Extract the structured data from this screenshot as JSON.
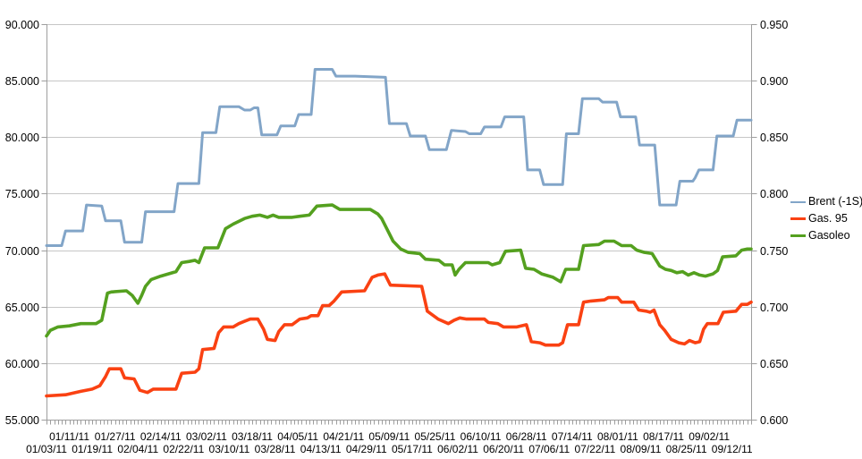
{
  "chart_data": {
    "type": "line",
    "title": "",
    "grid": true,
    "legend_position": "right",
    "y_axis_left": {
      "min": 55,
      "max": 90,
      "step": 5,
      "tick_values": [
        90,
        85,
        80,
        75,
        70,
        65,
        60,
        55
      ],
      "tick_labels": [
        "90.000",
        "85.000",
        "80.000",
        "75.000",
        "70.000",
        "65.000",
        "60.000",
        "55.000"
      ]
    },
    "y_axis_right": {
      "min": 0.6,
      "max": 0.95,
      "step": 0.05,
      "tick_values": [
        0.95,
        0.9,
        0.85,
        0.8,
        0.75,
        0.7,
        0.65,
        0.6
      ],
      "tick_labels": [
        "0.950",
        "0.900",
        "0.850",
        "0.800",
        "0.750",
        "0.700",
        "0.650",
        "0.600"
      ]
    },
    "x_axis": {
      "unit": "business-day index from 01/03/11",
      "day_span": [
        0,
        185
      ],
      "labels_row_upper": [
        "01/11/11",
        "01/27/11",
        "02/14/11",
        "03/02/11",
        "03/18/11",
        "04/05/11",
        "04/21/11",
        "05/09/11",
        "05/25/11",
        "06/10/11",
        "06/28/11",
        "07/14/11",
        "08/01/11",
        "08/17/11",
        "09/02/11"
      ],
      "label_days_upper": [
        6,
        18,
        30,
        42,
        54,
        66,
        78,
        90,
        102,
        114,
        126,
        138,
        150,
        162,
        174
      ],
      "labels_row_lower": [
        "01/03/11",
        "01/19/11",
        "02/04/11",
        "02/22/11",
        "03/10/11",
        "03/28/11",
        "04/13/11",
        "04/29/11",
        "05/17/11",
        "06/02/11",
        "06/20/11",
        "07/06/11",
        "07/22/11",
        "08/09/11",
        "08/25/11",
        "09/12/11"
      ],
      "label_days_lower": [
        0,
        12,
        24,
        36,
        48,
        60,
        72,
        84,
        96,
        108,
        120,
        132,
        144,
        156,
        168,
        180
      ]
    },
    "colors": {
      "brent": "#82A5C8",
      "gas95": "#FA4112",
      "gasoleo": "#54A01F",
      "gridline": "#C6C6C6",
      "axis": "#9E9E9E",
      "text": "#000000"
    },
    "series": [
      {
        "id": "brent",
        "name": "Brent (-1S)",
        "color": "#82A5C8",
        "axis": "left",
        "stroke_width": 3,
        "points": [
          [
            0,
            70.4
          ],
          [
            4,
            70.4
          ],
          [
            5,
            71.7
          ],
          [
            9.5,
            71.7
          ],
          [
            10.5,
            74.0
          ],
          [
            14.5,
            73.9
          ],
          [
            15.5,
            72.6
          ],
          [
            19.5,
            72.6
          ],
          [
            20.5,
            70.7
          ],
          [
            25,
            70.7
          ],
          [
            26,
            73.4
          ],
          [
            33.5,
            73.4
          ],
          [
            34.5,
            75.9
          ],
          [
            40,
            75.9
          ],
          [
            41,
            80.4
          ],
          [
            44.5,
            80.4
          ],
          [
            45.5,
            82.7
          ],
          [
            50.5,
            82.7
          ],
          [
            52,
            82.4
          ],
          [
            53.5,
            82.4
          ],
          [
            54.5,
            82.6
          ],
          [
            55.5,
            82.6
          ],
          [
            56.5,
            80.2
          ],
          [
            60.5,
            80.2
          ],
          [
            61.5,
            81.0
          ],
          [
            65.2,
            81.0
          ],
          [
            66.2,
            82.0
          ],
          [
            69.5,
            82.0
          ],
          [
            70.5,
            86.0
          ],
          [
            75,
            86.0
          ],
          [
            76,
            85.4
          ],
          [
            81,
            85.4
          ],
          [
            89,
            85.3
          ],
          [
            90,
            81.2
          ],
          [
            94.5,
            81.2
          ],
          [
            95.5,
            80.1
          ],
          [
            99.5,
            80.1
          ],
          [
            100.5,
            78.9
          ],
          [
            105,
            78.9
          ],
          [
            106.3,
            80.6
          ],
          [
            110,
            80.5
          ],
          [
            111,
            80.3
          ],
          [
            114,
            80.3
          ],
          [
            115,
            80.9
          ],
          [
            119.3,
            80.9
          ],
          [
            120.3,
            81.8
          ],
          [
            125.3,
            81.8
          ],
          [
            126.3,
            77.1
          ],
          [
            129.5,
            77.1
          ],
          [
            130.5,
            75.8
          ],
          [
            135.5,
            75.8
          ],
          [
            136.5,
            80.3
          ],
          [
            139.7,
            80.3
          ],
          [
            140.7,
            83.4
          ],
          [
            145,
            83.4
          ],
          [
            146,
            83.1
          ],
          [
            149.7,
            83.1
          ],
          [
            150.7,
            81.8
          ],
          [
            154.7,
            81.8
          ],
          [
            155.7,
            79.3
          ],
          [
            159.7,
            79.3
          ],
          [
            161,
            74.0
          ],
          [
            165.3,
            74.0
          ],
          [
            166.3,
            76.1
          ],
          [
            169.7,
            76.1
          ],
          [
            170.3,
            76.4
          ],
          [
            171.3,
            77.1
          ],
          [
            175,
            77.1
          ],
          [
            176,
            80.1
          ],
          [
            180.3,
            80.1
          ],
          [
            181.3,
            81.5
          ],
          [
            185,
            81.5
          ]
        ]
      },
      {
        "id": "gas95",
        "name": "Gas. 95",
        "color": "#FA4112",
        "axis": "right",
        "stroke_width": 3.6,
        "points": [
          [
            0,
            57.1
          ],
          [
            5,
            57.2
          ],
          [
            9,
            57.5
          ],
          [
            12,
            57.7
          ],
          [
            14,
            58.0
          ],
          [
            15.5,
            58.8
          ],
          [
            16.5,
            59.5
          ],
          [
            19.5,
            59.5
          ],
          [
            20.5,
            58.7
          ],
          [
            23,
            58.6
          ],
          [
            24.5,
            57.6
          ],
          [
            26.5,
            57.4
          ],
          [
            28,
            57.7
          ],
          [
            34,
            57.7
          ],
          [
            35.5,
            59.1
          ],
          [
            39,
            59.2
          ],
          [
            40,
            59.5
          ],
          [
            41,
            61.2
          ],
          [
            44,
            61.3
          ],
          [
            45.2,
            62.7
          ],
          [
            46.5,
            63.2
          ],
          [
            49,
            63.2
          ],
          [
            50.5,
            63.5
          ],
          [
            52,
            63.7
          ],
          [
            53.5,
            63.9
          ],
          [
            55.5,
            63.9
          ],
          [
            57,
            63.0
          ],
          [
            58,
            62.1
          ],
          [
            60,
            62.0
          ],
          [
            61,
            62.8
          ],
          [
            62.5,
            63.4
          ],
          [
            64.5,
            63.4
          ],
          [
            66.5,
            63.9
          ],
          [
            68.5,
            64.0
          ],
          [
            69.5,
            64.2
          ],
          [
            71.3,
            64.2
          ],
          [
            72.5,
            65.1
          ],
          [
            74.2,
            65.1
          ],
          [
            75.5,
            65.5
          ],
          [
            77.5,
            66.3
          ],
          [
            83.5,
            66.4
          ],
          [
            85.5,
            67.6
          ],
          [
            87,
            67.8
          ],
          [
            88.8,
            67.9
          ],
          [
            90.3,
            66.9
          ],
          [
            98.5,
            66.8
          ],
          [
            100,
            64.6
          ],
          [
            102.8,
            63.9
          ],
          [
            105.5,
            63.5
          ],
          [
            107,
            63.8
          ],
          [
            108.5,
            64.0
          ],
          [
            110.3,
            63.9
          ],
          [
            115,
            63.9
          ],
          [
            116,
            63.6
          ],
          [
            118.5,
            63.5
          ],
          [
            120,
            63.2
          ],
          [
            123.5,
            63.2
          ],
          [
            126,
            63.4
          ],
          [
            127.3,
            61.9
          ],
          [
            129.5,
            61.8
          ],
          [
            131,
            61.6
          ],
          [
            134.5,
            61.6
          ],
          [
            135.5,
            61.8
          ],
          [
            136.8,
            63.4
          ],
          [
            139.7,
            63.4
          ],
          [
            141,
            65.4
          ],
          [
            143,
            65.5
          ],
          [
            146.5,
            65.6
          ],
          [
            147.5,
            65.8
          ],
          [
            150,
            65.8
          ],
          [
            151,
            65.4
          ],
          [
            154.2,
            65.4
          ],
          [
            155.5,
            64.7
          ],
          [
            157.5,
            64.6
          ],
          [
            158.5,
            64.5
          ],
          [
            159.5,
            64.7
          ],
          [
            161,
            63.4
          ],
          [
            162.3,
            62.9
          ],
          [
            164,
            62.1
          ],
          [
            166,
            61.8
          ],
          [
            167.5,
            61.7
          ],
          [
            168.8,
            62.0
          ],
          [
            170.3,
            61.8
          ],
          [
            171.5,
            61.9
          ],
          [
            172.5,
            63.0
          ],
          [
            173.5,
            63.5
          ],
          [
            176.3,
            63.5
          ],
          [
            177.7,
            64.5
          ],
          [
            181,
            64.6
          ],
          [
            182.5,
            65.2
          ],
          [
            184,
            65.2
          ],
          [
            185,
            65.4
          ]
        ]
      },
      {
        "id": "gasoleo",
        "name": "Gasoleo",
        "color": "#54A01F",
        "axis": "right",
        "stroke_width": 3.6,
        "points": [
          [
            0,
            62.4
          ],
          [
            1,
            62.9
          ],
          [
            3,
            63.2
          ],
          [
            6,
            63.3
          ],
          [
            9,
            63.5
          ],
          [
            13,
            63.5
          ],
          [
            14.5,
            63.8
          ],
          [
            16,
            66.2
          ],
          [
            17,
            66.3
          ],
          [
            21,
            66.4
          ],
          [
            22.5,
            66.0
          ],
          [
            24,
            65.3
          ],
          [
            25,
            66.0
          ],
          [
            26,
            66.8
          ],
          [
            27.5,
            67.4
          ],
          [
            30,
            67.7
          ],
          [
            32,
            67.9
          ],
          [
            34,
            68.1
          ],
          [
            35.5,
            68.9
          ],
          [
            37.5,
            69.0
          ],
          [
            39,
            69.1
          ],
          [
            40,
            68.9
          ],
          [
            41.5,
            70.2
          ],
          [
            45,
            70.2
          ],
          [
            47,
            71.9
          ],
          [
            49,
            72.3
          ],
          [
            52,
            72.8
          ],
          [
            54,
            73.0
          ],
          [
            56,
            73.1
          ],
          [
            58,
            72.9
          ],
          [
            59.5,
            73.1
          ],
          [
            61,
            72.9
          ],
          [
            64.5,
            72.9
          ],
          [
            66.5,
            73.0
          ],
          [
            69,
            73.1
          ],
          [
            71,
            73.9
          ],
          [
            75,
            74.0
          ],
          [
            77,
            73.6
          ],
          [
            85,
            73.6
          ],
          [
            87,
            73.2
          ],
          [
            88,
            72.8
          ],
          [
            91,
            70.8
          ],
          [
            93,
            70.1
          ],
          [
            95,
            69.8
          ],
          [
            98,
            69.7
          ],
          [
            99.5,
            69.2
          ],
          [
            103,
            69.1
          ],
          [
            104.5,
            68.7
          ],
          [
            106.5,
            68.7
          ],
          [
            107.3,
            67.8
          ],
          [
            108.3,
            68.3
          ],
          [
            110,
            68.9
          ],
          [
            116,
            68.9
          ],
          [
            117,
            68.7
          ],
          [
            119,
            68.9
          ],
          [
            120.5,
            69.9
          ],
          [
            124.5,
            70.0
          ],
          [
            125.8,
            68.4
          ],
          [
            128,
            68.3
          ],
          [
            130,
            67.9
          ],
          [
            133,
            67.6
          ],
          [
            135,
            67.2
          ],
          [
            136.3,
            68.3
          ],
          [
            139.7,
            68.3
          ],
          [
            141,
            70.4
          ],
          [
            145,
            70.5
          ],
          [
            146.5,
            70.8
          ],
          [
            149,
            70.8
          ],
          [
            151,
            70.4
          ],
          [
            153.5,
            70.4
          ],
          [
            155,
            70.0
          ],
          [
            157,
            69.8
          ],
          [
            159,
            69.7
          ],
          [
            161,
            68.6
          ],
          [
            162.5,
            68.3
          ],
          [
            164,
            68.2
          ],
          [
            165.5,
            68.0
          ],
          [
            167,
            68.1
          ],
          [
            168.5,
            67.8
          ],
          [
            170,
            68.0
          ],
          [
            171.5,
            67.8
          ],
          [
            173,
            67.7
          ],
          [
            175,
            67.9
          ],
          [
            176.2,
            68.2
          ],
          [
            177.5,
            69.4
          ],
          [
            181,
            69.5
          ],
          [
            182.5,
            70.0
          ],
          [
            184,
            70.1
          ],
          [
            185,
            70.1
          ]
        ]
      }
    ]
  }
}
